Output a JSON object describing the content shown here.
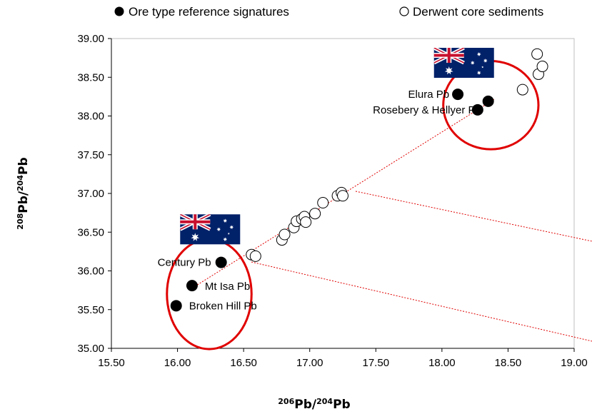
{
  "chart_data": {
    "type": "scatter",
    "xlabel": {
      "sup1": "206",
      "base1": "Pb/",
      "sup2": "204",
      "base2": "Pb"
    },
    "ylabel": {
      "sup1": "208",
      "base1": "Pb/",
      "sup2": "204",
      "base2": "Pb"
    },
    "xlim": [
      15.5,
      19.0
    ],
    "ylim": [
      35.0,
      39.0
    ],
    "x_ticks": [
      "15.50",
      "16.00",
      "16.50",
      "17.00",
      "17.50",
      "18.00",
      "18.50",
      "19.00"
    ],
    "y_ticks": [
      "35.00",
      "35.50",
      "36.00",
      "36.50",
      "37.00",
      "37.50",
      "38.00",
      "38.50",
      "39.00"
    ],
    "grid": false,
    "legend_position": "top",
    "series": [
      {
        "name": "Ore type reference signatures",
        "marker": "filled-circle",
        "color": "#000000",
        "points": [
          {
            "x": 15.99,
            "y": 35.55,
            "label": "Broken Hill Pb"
          },
          {
            "x": 16.11,
            "y": 35.81,
            "label": "Mt Isa Pb"
          },
          {
            "x": 16.33,
            "y": 36.11,
            "label": "Century Pb"
          },
          {
            "x": 18.12,
            "y": 38.28,
            "label": "Elura Pb"
          },
          {
            "x": 18.27,
            "y": 38.08,
            "label": "Rosebery & Hellyer Pb"
          },
          {
            "x": 18.35,
            "y": 38.19,
            "label": ""
          }
        ]
      },
      {
        "name": "Derwent core sediments",
        "marker": "open-circle",
        "color": "#000000",
        "points": [
          {
            "x": 16.56,
            "y": 36.21
          },
          {
            "x": 16.59,
            "y": 36.19
          },
          {
            "x": 16.79,
            "y": 36.4
          },
          {
            "x": 16.81,
            "y": 36.47
          },
          {
            "x": 16.88,
            "y": 36.56
          },
          {
            "x": 16.9,
            "y": 36.64
          },
          {
            "x": 16.94,
            "y": 36.67
          },
          {
            "x": 16.96,
            "y": 36.7
          },
          {
            "x": 16.97,
            "y": 36.63
          },
          {
            "x": 17.04,
            "y": 36.74
          },
          {
            "x": 17.1,
            "y": 36.88
          },
          {
            "x": 17.21,
            "y": 36.97
          },
          {
            "x": 17.24,
            "y": 37.01
          },
          {
            "x": 17.25,
            "y": 36.97
          },
          {
            "x": 18.61,
            "y": 38.34
          },
          {
            "x": 18.72,
            "y": 38.8
          },
          {
            "x": 18.73,
            "y": 38.54
          },
          {
            "x": 18.76,
            "y": 38.64
          }
        ]
      }
    ],
    "annotations": {
      "trend_line": {
        "x1": 16.15,
        "y1": 35.82,
        "x2": 18.4,
        "y2": 38.22,
        "color": "#e00000"
      },
      "circles": [
        {
          "cx": 16.24,
          "cy": 35.7,
          "rx": 0.32,
          "ry": 0.71,
          "color": "#e00000"
        },
        {
          "cx": 18.37,
          "cy": 38.14,
          "rx": 0.36,
          "ry": 0.57,
          "color": "#e00000"
        }
      ],
      "flags": [
        {
          "name": "australia-flag",
          "x": 16.02,
          "y": 36.73
        },
        {
          "name": "australia-flag",
          "x": 17.94,
          "y": 38.88
        }
      ]
    }
  }
}
